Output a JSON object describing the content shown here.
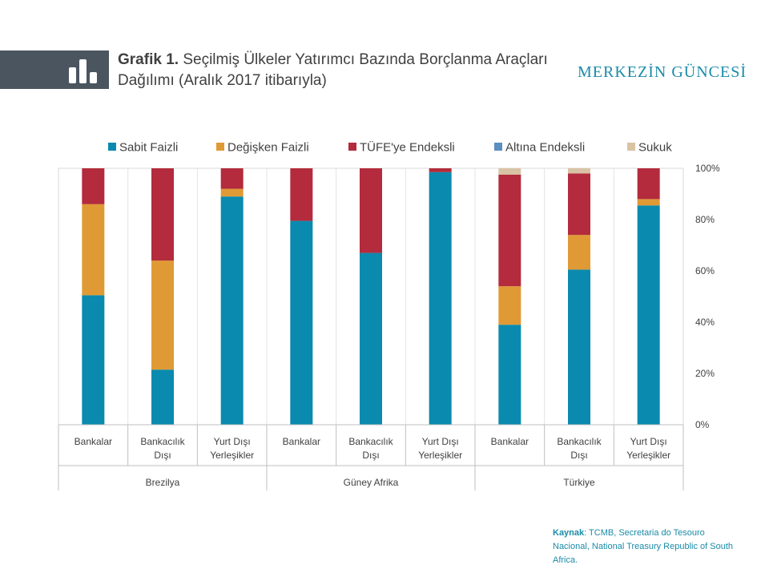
{
  "header": {
    "title_bold": "Grafik 1.",
    "title_rest": "Seçilmiş Ülkeler Yatırımcı Bazında Borçlanma Araçları Dağılımı (Aralık 2017 itibarıyla)",
    "brand": "MERKEZİN GÜNCESİ",
    "icon": "bar-chart-icon"
  },
  "source": {
    "label": "Kaynak",
    "text": ": TCMB, Secretaria do Tesouro Nacional, National Treasury Republic of South Africa."
  },
  "chart_data": {
    "type": "bar",
    "stacked": true,
    "percent": true,
    "categories": [
      "Bankalar",
      "Bankacılık Dışı",
      "Yurt Dışı Yerleşikler",
      "Bankalar",
      "Bankacılık Dışı",
      "Yurt Dışı Yerleşikler",
      "Bankalar",
      "Bankacılık Dışı",
      "Yurt Dışı Yerleşikler"
    ],
    "category_lines": [
      [
        "Bankalar"
      ],
      [
        "Bankacılık",
        "Dışı"
      ],
      [
        "Yurt Dışı",
        "Yerleşikler"
      ],
      [
        "Bankalar"
      ],
      [
        "Bankacılık",
        "Dışı"
      ],
      [
        "Yurt Dışı",
        "Yerleşikler"
      ],
      [
        "Bankalar"
      ],
      [
        "Bankacılık",
        "Dışı"
      ],
      [
        "Yurt Dışı",
        "Yerleşikler"
      ]
    ],
    "groups": [
      {
        "name": "Brezilya",
        "span": 3
      },
      {
        "name": "Güney Afrika",
        "span": 3
      },
      {
        "name": "Türkiye",
        "span": 3
      }
    ],
    "series": [
      {
        "name": "Sabit Faizli",
        "color": "#0a8aae",
        "values": [
          50.5,
          21.5,
          89,
          79.5,
          67,
          98.5,
          39,
          60.5,
          85.5
        ]
      },
      {
        "name": "Değişken Faizli",
        "color": "#e09a35",
        "values": [
          35.5,
          42.5,
          3,
          0,
          0,
          0,
          15,
          13.5,
          2.5
        ]
      },
      {
        "name": "TÜFE'ye Endeksli",
        "color": "#b32b3c",
        "values": [
          14,
          36,
          8,
          20.5,
          33,
          1.5,
          43.5,
          24,
          12
        ]
      },
      {
        "name": "Altına Endeksli",
        "color": "#5b8ec1",
        "values": [
          0,
          0,
          0,
          0,
          0,
          0,
          0,
          0,
          0
        ]
      },
      {
        "name": "Sukuk",
        "color": "#d9c3a5",
        "values": [
          0,
          0,
          0,
          0,
          0,
          0,
          2.5,
          2,
          0
        ]
      }
    ],
    "y_ticks": [
      "0%",
      "20%",
      "40%",
      "60%",
      "80%",
      "100%"
    ],
    "ylim": [
      0,
      100
    ],
    "grid": true,
    "legend_position": "top",
    "y_axis_position": "right"
  }
}
